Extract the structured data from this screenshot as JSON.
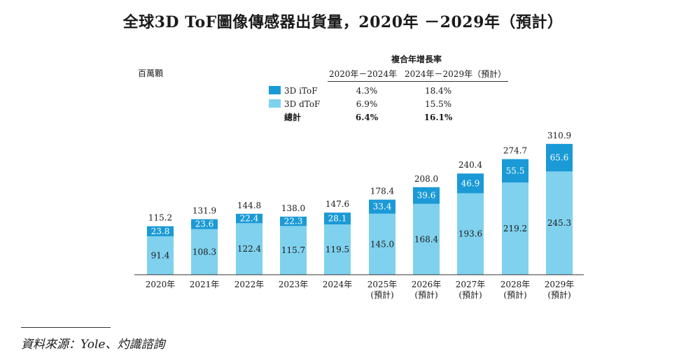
{
  "title": "全球3D ToF圖像傳感器出貨量，2020年 －2029年（預計）",
  "unit_label": "百萬顆",
  "cagr": {
    "heading": "複合年增長率",
    "col1": "2020年－2024年",
    "col2": "2024年－2029年（預計）",
    "rows": [
      {
        "label": "3D iToF",
        "color": "#1a9ad6",
        "v1": "4.3%",
        "v2": "18.4%",
        "bold": false
      },
      {
        "label": "3D dToF",
        "color": "#7fd1ee",
        "v1": "6.9%",
        "v2": "15.5%",
        "bold": false
      },
      {
        "label": "總計",
        "color": "",
        "v1": "6.4%",
        "v2": "16.1%",
        "bold": true
      }
    ]
  },
  "chart_data": {
    "type": "bar",
    "stacked": true,
    "title": "全球3D ToF圖像傳感器出貨量，2020年 －2029年（預計）",
    "ylabel": "百萬顆",
    "categories": [
      "2020年",
      "2021年",
      "2022年",
      "2023年",
      "2024年",
      "2025年\n(預計)",
      "2026年\n(預計)",
      "2027年\n(預計)",
      "2028年\n(預計)",
      "2029年\n(預計)"
    ],
    "series": [
      {
        "name": "3D dToF",
        "color": "#7fd1ee",
        "values": [
          "91.4",
          "108.3",
          "122.4",
          "115.7",
          "119.5",
          "145.0",
          "168.4",
          "193.6",
          "219.2",
          "245.3"
        ]
      },
      {
        "name": "3D iToF",
        "color": "#1a9ad6",
        "values": [
          "23.8",
          "23.6",
          "22.4",
          "22.3",
          "28.1",
          "33.4",
          "39.6",
          "46.9",
          "55.5",
          "65.6"
        ]
      }
    ],
    "totals": [
      "115.2",
      "131.9",
      "144.8",
      "138.0",
      "147.6",
      "178.4",
      "208.0",
      "240.4",
      "274.7",
      "310.9"
    ],
    "ylim": [
      0,
      320
    ]
  },
  "source": "資料來源：Yole、灼識諮詢"
}
